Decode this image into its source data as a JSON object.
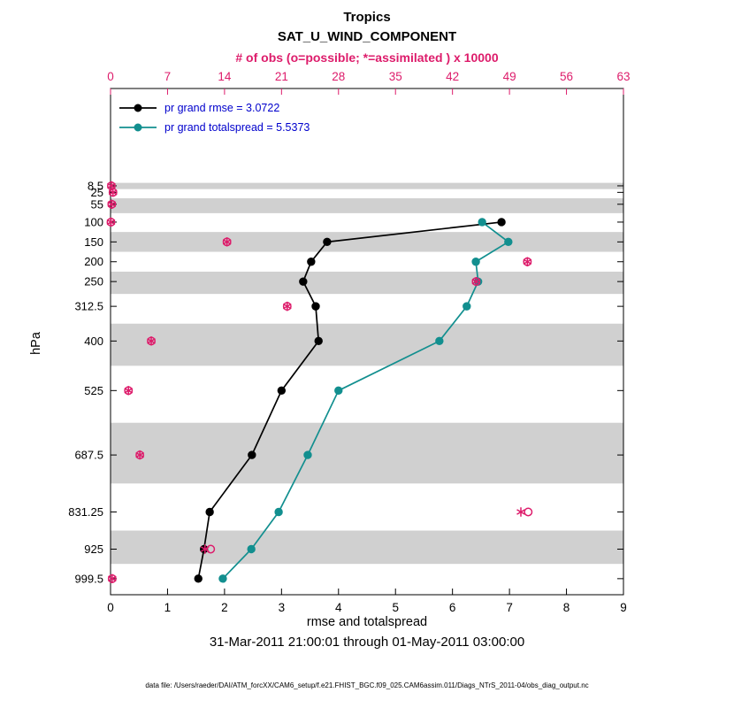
{
  "colors": {
    "legend_text": "#0000cc",
    "band": "#d0d0d0",
    "axis_box": "#000000"
  },
  "footer": {
    "date_range": "31-Mar-2011 21:00:01 through 01-May-2011 03:00:00",
    "data_file": "data file: /Users/raeder/DAI/ATM_forcXX/CAM6_setup/f.e21.FHIST_BGC.f09_025.CAM6assim.011/Diags_NTrS_2011-04/obs_diag_output.nc"
  },
  "chart_data": {
    "type": "line",
    "title": "Tropics",
    "subtitle": "SAT_U_WIND_COMPONENT",
    "top_axis_label": "# of obs (o=possible; *=assimilated ) x 10000",
    "xlabel": "rmse and totalspread",
    "ylabel": "hPa",
    "x_bottom": {
      "lim": [
        0,
        9
      ],
      "ticks": [
        0,
        1,
        2,
        3,
        4,
        5,
        6,
        7,
        8,
        9
      ]
    },
    "x_top": {
      "lim": [
        0,
        63
      ],
      "ticks": [
        0,
        7,
        14,
        21,
        28,
        35,
        42,
        49,
        56,
        63
      ],
      "color": "#dd1c6b"
    },
    "y": {
      "lim": [
        -237,
        1040
      ],
      "direction": "down",
      "tick_levels": [
        8.5,
        25,
        55,
        100,
        150,
        200,
        250,
        312.5,
        400,
        525,
        687.5,
        831.25,
        925,
        999.5
      ]
    },
    "shaded_bands_pressure": [
      [
        1,
        16.75
      ],
      [
        40,
        77.5
      ],
      [
        125,
        175
      ],
      [
        225,
        281.25
      ],
      [
        356.25,
        462.5
      ],
      [
        606.25,
        759.375
      ],
      [
        878.125,
        962.25
      ]
    ],
    "series": [
      {
        "name": "pr grand rmse = 3.0722",
        "color": "#000000",
        "marker": "filled-circle",
        "points": [
          {
            "p": 100,
            "x": 6.86
          },
          {
            "p": 150,
            "x": 3.8
          },
          {
            "p": 200,
            "x": 3.52
          },
          {
            "p": 250,
            "x": 3.38
          },
          {
            "p": 312.5,
            "x": 3.6
          },
          {
            "p": 400,
            "x": 3.65
          },
          {
            "p": 525,
            "x": 3.0
          },
          {
            "p": 687.5,
            "x": 2.48
          },
          {
            "p": 831.25,
            "x": 1.74
          },
          {
            "p": 925,
            "x": 1.64
          },
          {
            "p": 999.5,
            "x": 1.54
          }
        ]
      },
      {
        "name": "pr grand totalspread = 5.5373",
        "color": "#128f8f",
        "marker": "filled-circle",
        "points": [
          {
            "p": 100,
            "x": 6.52
          },
          {
            "p": 150,
            "x": 6.98
          },
          {
            "p": 200,
            "x": 6.41
          },
          {
            "p": 250,
            "x": 6.45
          },
          {
            "p": 312.5,
            "x": 6.25
          },
          {
            "p": 400,
            "x": 5.77
          },
          {
            "p": 525,
            "x": 4.0
          },
          {
            "p": 687.5,
            "x": 3.46
          },
          {
            "p": 831.25,
            "x": 2.95
          },
          {
            "p": 925,
            "x": 2.47
          },
          {
            "p": 999.5,
            "x": 1.97
          }
        ]
      }
    ],
    "obs_counts": {
      "units": "x 10000",
      "color": "#dd1c6b",
      "marker_possible": "open-circle",
      "marker_assimilated": "asterisk",
      "levels": [
        {
          "p": 8.5,
          "possible": 0.1,
          "assimilated": 0.1
        },
        {
          "p": 25,
          "possible": 0.3,
          "assimilated": 0.3
        },
        {
          "p": 55,
          "possible": 0.15,
          "assimilated": 0.15
        },
        {
          "p": 100,
          "possible": 0.05,
          "assimilated": 0.05
        },
        {
          "p": 150,
          "possible": 14.3,
          "assimilated": 14.3
        },
        {
          "p": 200,
          "possible": 51.2,
          "assimilated": 51.2
        },
        {
          "p": 250,
          "possible": 44.9,
          "assimilated": 44.9
        },
        {
          "p": 312.5,
          "possible": 21.7,
          "assimilated": 21.7
        },
        {
          "p": 400,
          "possible": 5.0,
          "assimilated": 5.0
        },
        {
          "p": 525,
          "possible": 2.2,
          "assimilated": 2.2
        },
        {
          "p": 687.5,
          "possible": 3.6,
          "assimilated": 3.6
        },
        {
          "p": 831.25,
          "possible": 51.3,
          "assimilated": 50.4
        },
        {
          "p": 925,
          "possible": 12.3,
          "assimilated": 11.6
        },
        {
          "p": 999.5,
          "possible": 0.2,
          "assimilated": 0.2
        }
      ]
    }
  }
}
